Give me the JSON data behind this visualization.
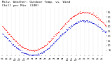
{
  "title": "Milw. Weather: Outdoor Temp. vs. Wind\nChill per Min. (24H)",
  "title_fontsize": 3.2,
  "background_color": "#ffffff",
  "plot_bg_color": "#ffffff",
  "text_color": "#000000",
  "grid_color": "#bbbbbb",
  "temp_color": "#ff0000",
  "windchill_color": "#0000cc",
  "ylim": [
    10,
    60
  ],
  "yticks": [
    15,
    20,
    25,
    30,
    35,
    40,
    45,
    50,
    55
  ],
  "ylabel_fontsize": 2.5,
  "xlabel_fontsize": 1.9,
  "n_points": 1440,
  "dot_size": 0.3,
  "dot_alpha": 1.0,
  "temp_data_key": "generated",
  "xtick_labels": [
    "7p",
    "8p",
    "9p",
    "10p",
    "11p",
    "12a",
    "1a",
    "2a",
    "3a",
    "4a",
    "5a",
    "6a",
    "7a",
    "8a",
    "9a",
    "10a",
    "11a",
    "12p",
    "1p",
    "2p",
    "3p",
    "4p",
    "5p",
    "6p"
  ]
}
